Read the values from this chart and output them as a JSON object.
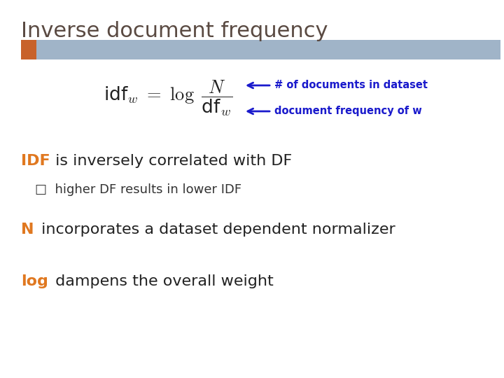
{
  "title": "Inverse document frequency",
  "title_color": "#5a4a42",
  "title_fontsize": 22,
  "background_color": "#ffffff",
  "header_bar_color": "#a0b4c8",
  "header_bar_accent_color": "#c8622a",
  "formula_color": "#222222",
  "annotation_color": "#1a1acc",
  "orange_color": "#e07820",
  "idf_label_text": "IDF",
  "idf_rest_text": " is inversely correlated with DF",
  "bullet_text": "□  higher DF results in lower IDF",
  "N_label_text": "N",
  "N_rest_text": " incorporates a dataset dependent normalizer",
  "log_label_text": "log",
  "log_rest_text": " dampens the overall weight",
  "annotation1": "# of documents in dataset",
  "annotation2": "document frequency of w"
}
